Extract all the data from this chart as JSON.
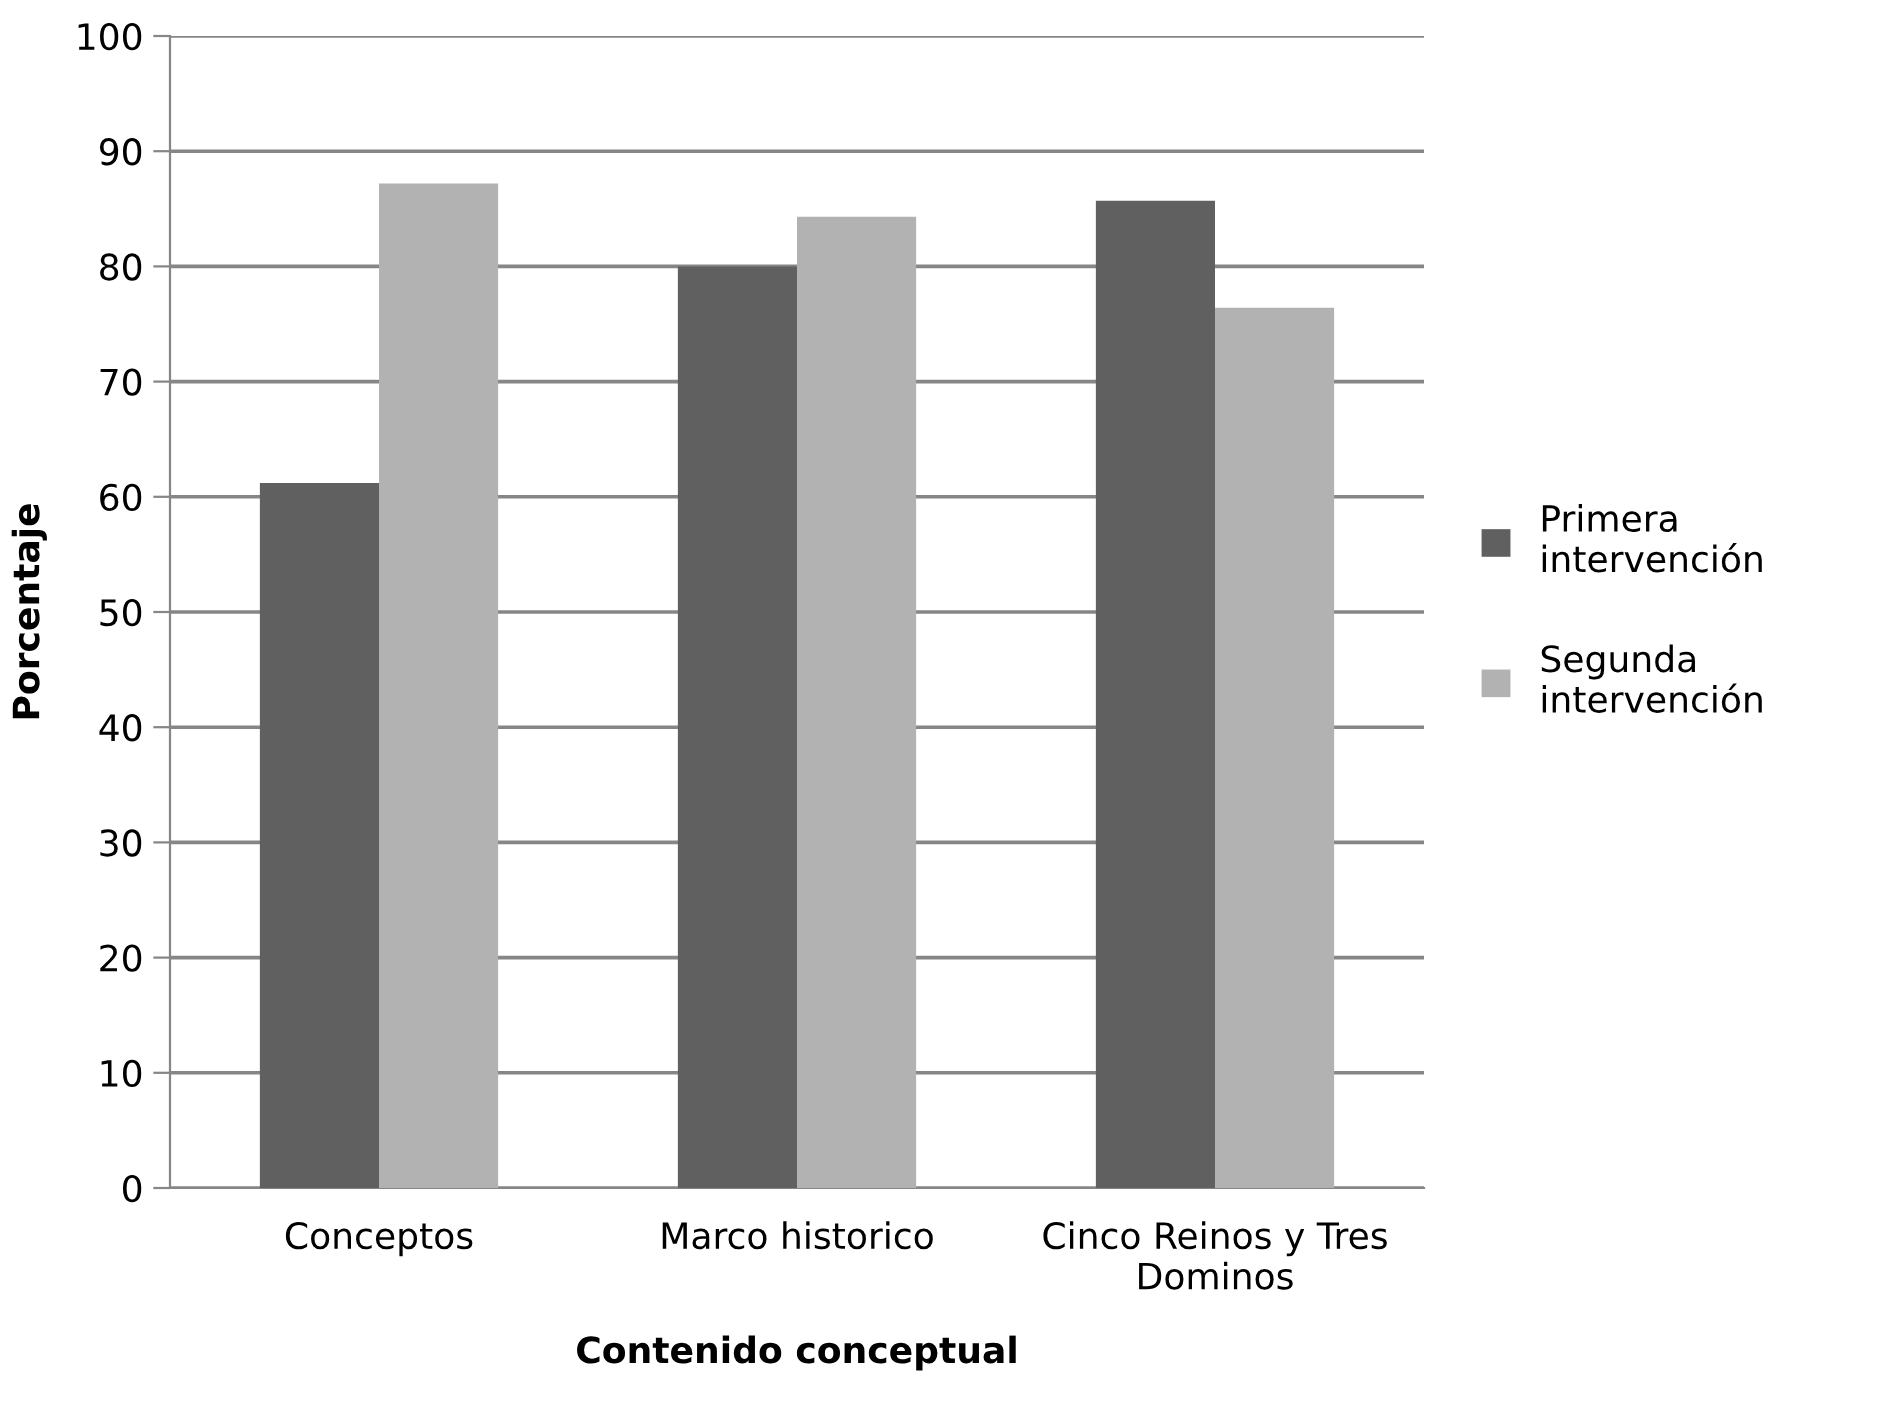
{
  "chart_data": {
    "type": "bar",
    "xlabel": "Contenido conceptual",
    "ylabel": "Porcentaje",
    "categories": [
      "Conceptos",
      "Marco historico",
      "Cinco Reinos y Tres Dominos"
    ],
    "series": [
      {
        "name": "Primera intervención",
        "color": "#606060",
        "values": [
          61.2,
          80.0,
          85.7
        ]
      },
      {
        "name": "Segunda intervención",
        "color": "#b2b2b2",
        "values": [
          87.2,
          84.3,
          76.4
        ]
      }
    ],
    "ylim": [
      0,
      100
    ],
    "yticks": [
      0,
      10,
      20,
      30,
      40,
      50,
      60,
      70,
      80,
      90,
      100
    ],
    "grid": "y",
    "legend": "right"
  }
}
